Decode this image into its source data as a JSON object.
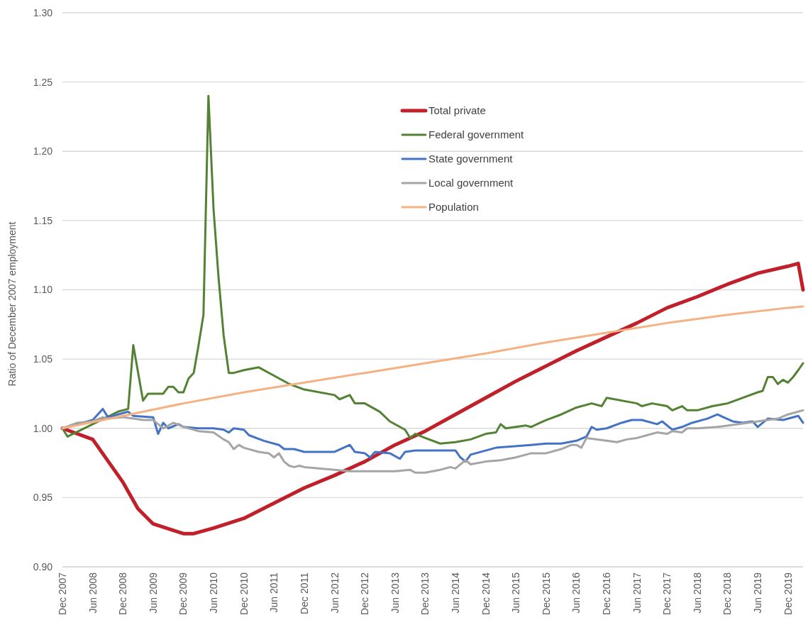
{
  "chart_data": {
    "type": "line",
    "ylabel": "Ratio of December 2007 employment",
    "xlim": [
      "2007-12",
      "2020-03"
    ],
    "ylim": [
      0.9,
      1.3
    ],
    "yticks": [
      {
        "value": 0.9,
        "label": "0.90"
      },
      {
        "value": 0.95,
        "label": "0.95"
      },
      {
        "value": 1.0,
        "label": "1.00"
      },
      {
        "value": 1.05,
        "label": "1.05"
      },
      {
        "value": 1.1,
        "label": "1.10"
      },
      {
        "value": 1.15,
        "label": "1.15"
      },
      {
        "value": 1.2,
        "label": "1.20"
      },
      {
        "value": 1.25,
        "label": "1.25"
      },
      {
        "value": 1.3,
        "label": "1.30"
      }
    ],
    "xticks": [
      {
        "value": "2007-12",
        "label": "Dec 2007"
      },
      {
        "value": "2008-06",
        "label": "Jun 2008"
      },
      {
        "value": "2008-12",
        "label": "Dec 2008"
      },
      {
        "value": "2009-06",
        "label": "Jun 2009"
      },
      {
        "value": "2009-12",
        "label": "Dec 2009"
      },
      {
        "value": "2010-06",
        "label": "Jun 2010"
      },
      {
        "value": "2010-12",
        "label": "Dec 2010"
      },
      {
        "value": "2011-06",
        "label": "Jun 2011"
      },
      {
        "value": "2011-12",
        "label": "Dec 2011"
      },
      {
        "value": "2012-06",
        "label": "Jun 2012"
      },
      {
        "value": "2012-12",
        "label": "Dec 2012"
      },
      {
        "value": "2013-06",
        "label": "Jun 2013"
      },
      {
        "value": "2013-12",
        "label": "Dec 2013"
      },
      {
        "value": "2014-06",
        "label": "Jun 2014"
      },
      {
        "value": "2014-12",
        "label": "Dec 2014"
      },
      {
        "value": "2015-06",
        "label": "Jun 2015"
      },
      {
        "value": "2015-12",
        "label": "Dec 2015"
      },
      {
        "value": "2016-06",
        "label": "Jun 2016"
      },
      {
        "value": "2016-12",
        "label": "Dec 2016"
      },
      {
        "value": "2017-06",
        "label": "Jun 2017"
      },
      {
        "value": "2017-12",
        "label": "Dec 2017"
      },
      {
        "value": "2018-06",
        "label": "Jun 2018"
      },
      {
        "value": "2018-12",
        "label": "Dec 2018"
      },
      {
        "value": "2019-06",
        "label": "Jun 2019"
      },
      {
        "value": "2019-12",
        "label": "Dec 2019"
      }
    ],
    "grid": "y",
    "legend": "top",
    "marker": "none",
    "line_style": "solid",
    "series": [
      {
        "name": "Total private",
        "color": "#c0202a",
        "x": [
          "2007-12",
          "2008-06",
          "2008-12",
          "2009-03",
          "2009-06",
          "2009-12",
          "2010-02",
          "2010-06",
          "2010-12",
          "2011-06",
          "2011-12",
          "2012-06",
          "2012-12",
          "2013-06",
          "2013-12",
          "2014-06",
          "2014-12",
          "2015-06",
          "2015-12",
          "2016-06",
          "2016-12",
          "2017-06",
          "2017-12",
          "2018-06",
          "2018-12",
          "2019-06",
          "2019-12",
          "2020-02",
          "2020-03"
        ],
        "values": [
          1.0,
          0.992,
          0.961,
          0.942,
          0.931,
          0.924,
          0.924,
          0.928,
          0.935,
          0.946,
          0.957,
          0.966,
          0.976,
          0.988,
          0.998,
          1.01,
          1.022,
          1.034,
          1.045,
          1.056,
          1.066,
          1.076,
          1.087,
          1.095,
          1.104,
          1.112,
          1.117,
          1.119,
          1.1
        ]
      },
      {
        "name": "Federal government",
        "color": "#548235",
        "x": [
          "2007-12",
          "2008-01",
          "2008-06",
          "2008-11",
          "2009-01",
          "2009-02",
          "2009-04",
          "2009-05",
          "2009-08",
          "2009-09",
          "2009-10",
          "2009-11",
          "2009-12",
          "2010-01",
          "2010-02",
          "2010-03",
          "2010-04",
          "2010-05",
          "2010-06",
          "2010-07",
          "2010-08",
          "2010-09",
          "2010-10",
          "2010-12",
          "2011-03",
          "2011-06",
          "2011-09",
          "2011-12",
          "2012-06",
          "2012-07",
          "2012-09",
          "2012-10",
          "2012-12",
          "2013-03",
          "2013-05",
          "2013-08",
          "2013-09",
          "2013-10",
          "2013-12",
          "2014-03",
          "2014-06",
          "2014-09",
          "2014-12",
          "2015-02",
          "2015-03",
          "2015-04",
          "2015-06",
          "2015-08",
          "2015-09",
          "2015-12",
          "2016-03",
          "2016-06",
          "2016-09",
          "2016-11",
          "2016-12",
          "2017-06",
          "2017-07",
          "2017-09",
          "2017-12",
          "2018-01",
          "2018-03",
          "2018-04",
          "2018-06",
          "2018-09",
          "2018-12",
          "2019-03",
          "2019-06",
          "2019-07",
          "2019-08",
          "2019-09",
          "2019-10",
          "2019-11",
          "2019-12",
          "2020-01",
          "2020-02",
          "2020-03"
        ],
        "values": [
          1.0,
          0.994,
          1.003,
          1.012,
          1.014,
          1.06,
          1.02,
          1.025,
          1.025,
          1.03,
          1.03,
          1.026,
          1.026,
          1.036,
          1.04,
          1.059,
          1.082,
          1.24,
          1.158,
          1.109,
          1.067,
          1.04,
          1.04,
          1.042,
          1.044,
          1.038,
          1.032,
          1.028,
          1.024,
          1.021,
          1.024,
          1.018,
          1.018,
          1.012,
          1.005,
          0.999,
          0.993,
          0.996,
          0.993,
          0.989,
          0.99,
          0.992,
          0.996,
          0.997,
          1.003,
          1.0,
          1.001,
          1.002,
          1.001,
          1.006,
          1.01,
          1.015,
          1.018,
          1.016,
          1.022,
          1.018,
          1.016,
          1.018,
          1.016,
          1.013,
          1.016,
          1.013,
          1.013,
          1.016,
          1.018,
          1.022,
          1.026,
          1.027,
          1.037,
          1.037,
          1.032,
          1.035,
          1.033,
          1.037,
          1.042,
          1.047
        ]
      },
      {
        "name": "State government",
        "color": "#4472c4",
        "x": [
          "2007-12",
          "2008-06",
          "2008-08",
          "2008-09",
          "2008-11",
          "2009-01",
          "2009-02",
          "2009-06",
          "2009-07",
          "2009-08",
          "2009-09",
          "2009-11",
          "2009-12",
          "2010-03",
          "2010-06",
          "2010-08",
          "2010-09",
          "2010-10",
          "2010-12",
          "2011-01",
          "2011-04",
          "2011-07",
          "2011-08",
          "2011-10",
          "2011-12",
          "2012-06",
          "2012-09",
          "2012-10",
          "2012-12",
          "2013-01",
          "2013-02",
          "2013-05",
          "2013-07",
          "2013-08",
          "2013-10",
          "2014-06",
          "2014-07",
          "2014-08",
          "2014-09",
          "2015-02",
          "2015-09",
          "2015-12",
          "2016-03",
          "2016-06",
          "2016-08",
          "2016-09",
          "2016-10",
          "2016-12",
          "2017-03",
          "2017-05",
          "2017-07",
          "2017-10",
          "2017-11",
          "2018-01",
          "2018-03",
          "2018-05",
          "2018-08",
          "2018-10",
          "2019-01",
          "2019-03",
          "2019-05",
          "2019-06",
          "2019-08",
          "2019-11",
          "2020-02",
          "2020-03"
        ],
        "values": [
          1.0,
          1.006,
          1.014,
          1.008,
          1.01,
          1.012,
          1.009,
          1.008,
          0.996,
          1.004,
          1.0,
          1.003,
          1.001,
          1.0,
          1.0,
          0.999,
          0.997,
          1.0,
          0.999,
          0.995,
          0.991,
          0.988,
          0.985,
          0.985,
          0.983,
          0.983,
          0.988,
          0.983,
          0.982,
          0.979,
          0.983,
          0.982,
          0.978,
          0.983,
          0.984,
          0.984,
          0.979,
          0.976,
          0.981,
          0.986,
          0.988,
          0.989,
          0.989,
          0.991,
          0.994,
          1.001,
          0.999,
          1.0,
          1.004,
          1.006,
          1.006,
          1.003,
          1.005,
          0.999,
          1.001,
          1.004,
          1.007,
          1.01,
          1.005,
          1.004,
          1.005,
          1.001,
          1.007,
          1.006,
          1.009,
          1.004
        ]
      },
      {
        "name": "Local government",
        "color": "#a5a5a5",
        "x": [
          "2007-12",
          "2008-03",
          "2008-06",
          "2008-08",
          "2008-09",
          "2008-12",
          "2009-02",
          "2009-04",
          "2009-06",
          "2009-07",
          "2009-08",
          "2009-09",
          "2009-10",
          "2009-12",
          "2010-03",
          "2010-06",
          "2010-08",
          "2010-09",
          "2010-10",
          "2010-11",
          "2010-12",
          "2011-03",
          "2011-05",
          "2011-06",
          "2011-07",
          "2011-08",
          "2011-09",
          "2011-10",
          "2011-11",
          "2011-12",
          "2012-06",
          "2012-09",
          "2012-12",
          "2013-06",
          "2013-09",
          "2013-10",
          "2013-12",
          "2014-03",
          "2014-05",
          "2014-06",
          "2014-08",
          "2014-09",
          "2014-12",
          "2015-03",
          "2015-06",
          "2015-08",
          "2015-09",
          "2015-12",
          "2016-03",
          "2016-05",
          "2016-06",
          "2016-07",
          "2016-08",
          "2016-12",
          "2017-02",
          "2017-04",
          "2017-06",
          "2017-08",
          "2017-10",
          "2017-12",
          "2018-01",
          "2018-03",
          "2018-04",
          "2018-06",
          "2018-10",
          "2019-02",
          "2019-06",
          "2019-10",
          "2019-12",
          "2020-02",
          "2020-03"
        ],
        "values": [
          1.0,
          1.004,
          1.005,
          1.008,
          1.007,
          1.008,
          1.007,
          1.006,
          1.006,
          1.003,
          1.0,
          1.002,
          1.004,
          1.001,
          0.998,
          0.997,
          0.992,
          0.99,
          0.985,
          0.988,
          0.986,
          0.983,
          0.982,
          0.979,
          0.982,
          0.976,
          0.973,
          0.972,
          0.973,
          0.972,
          0.97,
          0.969,
          0.969,
          0.969,
          0.97,
          0.968,
          0.968,
          0.97,
          0.972,
          0.971,
          0.977,
          0.974,
          0.976,
          0.977,
          0.979,
          0.981,
          0.982,
          0.982,
          0.985,
          0.988,
          0.988,
          0.986,
          0.993,
          0.991,
          0.99,
          0.992,
          0.993,
          0.995,
          0.997,
          0.996,
          0.998,
          0.997,
          1.0,
          1.0,
          1.001,
          1.003,
          1.005,
          1.007,
          1.01,
          1.012,
          1.013
        ]
      },
      {
        "name": "Population",
        "color": "#f4b183",
        "x": [
          "2007-12",
          "2008-12",
          "2009-12",
          "2010-12",
          "2011-12",
          "2012-12",
          "2013-12",
          "2014-12",
          "2015-12",
          "2016-12",
          "2017-12",
          "2018-12",
          "2019-12",
          "2020-03"
        ],
        "values": [
          1.0,
          1.009,
          1.018,
          1.026,
          1.033,
          1.04,
          1.047,
          1.054,
          1.062,
          1.069,
          1.076,
          1.082,
          1.087,
          1.088
        ]
      }
    ]
  }
}
